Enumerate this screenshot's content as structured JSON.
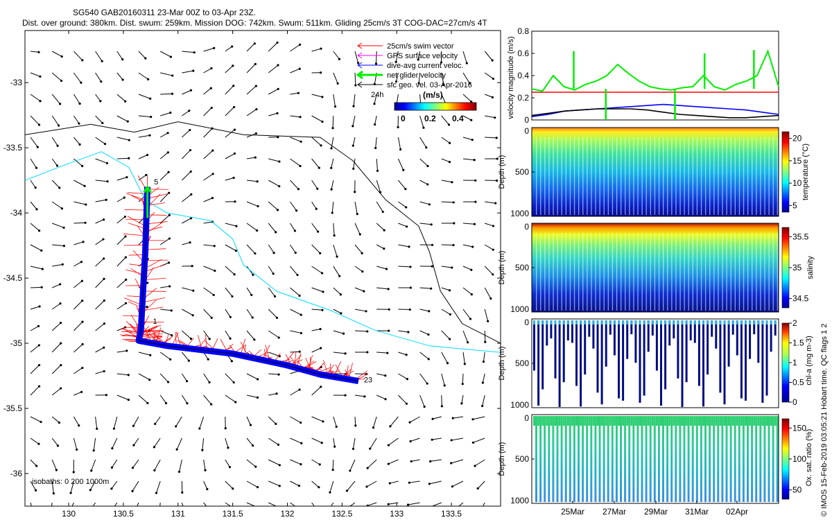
{
  "header": {
    "line1": "SG540 GAB20160311 23-Mar 00Z to 03-Apr 23Z.",
    "line2": "Dist. over ground: 380km. Dist. swum: 259km. Mission DOG: 742km. Swum: 511km. Gliding 25cm/s 3T COG-DAC=27cm/s 4T"
  },
  "footer_vertical": "© IMOS 15-Feb-2019 03:05:21 Hobart time. QC flags 1  2",
  "chart_data": [
    {
      "type": "map",
      "xlim": [
        129.6,
        133.95
      ],
      "ylim": [
        -36.25,
        -32.6
      ],
      "xticks": [
        130,
        130.5,
        131,
        131.5,
        132,
        132.5,
        133,
        133.5
      ],
      "yticks": [
        -33,
        -33.5,
        -34,
        -34.5,
        -35,
        -35.5,
        -36
      ],
      "legend": {
        "items": [
          {
            "label": "25cm/s swim vector",
            "color": "#ff0000"
          },
          {
            "label": "GPS surface velocity",
            "color": "#ff00ff"
          },
          {
            "label": "dive-avg current veloc.",
            "color": "#0000ff"
          },
          {
            "label": "net glider velocity",
            "color": "#00ff00"
          },
          {
            "label": "sfc geo. vel. 03-Apr-2016",
            "color": "#000000"
          }
        ],
        "scale_label": "24h",
        "colorbar_title": "(m/s)",
        "colorbar_ticks": [
          "0",
          "0.2",
          "0.4"
        ]
      },
      "isobath_note": "isobaths: 0   200   1000m",
      "track": [
        [
          130.72,
          -33.8
        ],
        [
          130.7,
          -34.3
        ],
        [
          130.66,
          -34.9
        ],
        [
          130.64,
          -34.98
        ],
        [
          130.9,
          -35.02
        ],
        [
          131.5,
          -35.08
        ],
        [
          132.0,
          -35.17
        ],
        [
          132.3,
          -35.24
        ],
        [
          132.65,
          -35.29
        ]
      ],
      "track_labels": [
        {
          "text": "5",
          "lon": 130.78,
          "lat": -33.78
        },
        {
          "text": "1",
          "lon": 130.77,
          "lat": -34.85
        },
        {
          "text": "23",
          "lon": 132.7,
          "lat": -35.3
        }
      ],
      "isobath_200": [
        [
          129.6,
          -33.4
        ],
        [
          130.2,
          -33.32
        ],
        [
          130.6,
          -33.38
        ],
        [
          131.0,
          -33.3
        ],
        [
          131.6,
          -33.4
        ],
        [
          132.3,
          -33.42
        ],
        [
          132.6,
          -33.6
        ],
        [
          132.9,
          -33.9
        ],
        [
          133.2,
          -34.1
        ],
        [
          133.3,
          -34.3
        ],
        [
          133.4,
          -34.6
        ],
        [
          133.6,
          -34.85
        ],
        [
          133.95,
          -35.0
        ]
      ],
      "isobath_1000": [
        [
          129.6,
          -33.75
        ],
        [
          130.0,
          -33.62
        ],
        [
          130.3,
          -33.53
        ],
        [
          130.55,
          -33.65
        ],
        [
          130.7,
          -33.9
        ],
        [
          130.9,
          -34.0
        ],
        [
          131.3,
          -34.06
        ],
        [
          131.5,
          -34.2
        ],
        [
          131.6,
          -34.4
        ],
        [
          131.9,
          -34.6
        ],
        [
          132.4,
          -34.75
        ],
        [
          132.8,
          -34.9
        ],
        [
          133.3,
          -35.02
        ],
        [
          133.95,
          -35.07
        ]
      ]
    },
    {
      "type": "line",
      "ylabel": "velocity magnitude (m/s)",
      "ylim": [
        0,
        0.8
      ],
      "yticks": [
        "0",
        "0.2",
        "0.4",
        "0.6",
        "0.8"
      ],
      "series": [
        {
          "color": "#ff0000",
          "values": [
            0.25,
            0.25
          ]
        },
        {
          "color": "#00ee00",
          "values": [
            0.28,
            0.26,
            0.4,
            0.3,
            0.27,
            0.32,
            0.35,
            0.4,
            0.5,
            0.42,
            0.35,
            0.3,
            0.28,
            0.27,
            0.29,
            0.3,
            0.4,
            0.3,
            0.27,
            0.32,
            0.35,
            0.4,
            0.62,
            0.3
          ]
        },
        {
          "color": "#0000ff",
          "values": [
            0.03,
            0.05,
            0.08,
            0.09,
            0.1,
            0.11,
            0.12,
            0.13,
            0.14,
            0.13,
            0.12,
            0.11,
            0.1,
            0.09,
            0.07,
            0.05
          ]
        },
        {
          "color": "#000000",
          "values": [
            0.04,
            0.06,
            0.08,
            0.09,
            0.1,
            0.1,
            0.1,
            0.09,
            0.07,
            0.05,
            0.04,
            0.03,
            0.02,
            0.02,
            0.03,
            0.04
          ]
        }
      ]
    },
    {
      "type": "scatter",
      "ylabel": "Depth (m)",
      "ylim": [
        0,
        1000
      ],
      "yticks": [
        "0",
        "500",
        "1000"
      ],
      "clabel": "temperature (°C)",
      "cticks": [
        "5",
        "10",
        "15",
        "20"
      ]
    },
    {
      "type": "scatter",
      "ylabel": "Depth (m)",
      "ylim": [
        0,
        1000
      ],
      "yticks": [
        "0",
        "500",
        "1000"
      ],
      "clabel": "salinity",
      "cticks": [
        "34.5",
        "35",
        "35.5"
      ]
    },
    {
      "type": "scatter",
      "ylabel": "Depth (m)",
      "ylim": [
        0,
        1000
      ],
      "yticks": [
        "0",
        "500",
        "1000"
      ],
      "clabel": "chl-a (mg m-3)",
      "cticks": [
        "0",
        "0.5",
        "1",
        "1.5",
        "2"
      ]
    },
    {
      "type": "scatter",
      "ylabel": "Depth (m)",
      "ylim": [
        0,
        1000
      ],
      "yticks": [
        "0",
        "500",
        "1000"
      ],
      "clabel": "Ox. sat. ratio (%)",
      "cticks": [
        "50",
        "100",
        "150"
      ],
      "xticks": [
        "25Mar",
        "27Mar",
        "29Mar",
        "31Mar",
        "02Apr"
      ]
    }
  ]
}
